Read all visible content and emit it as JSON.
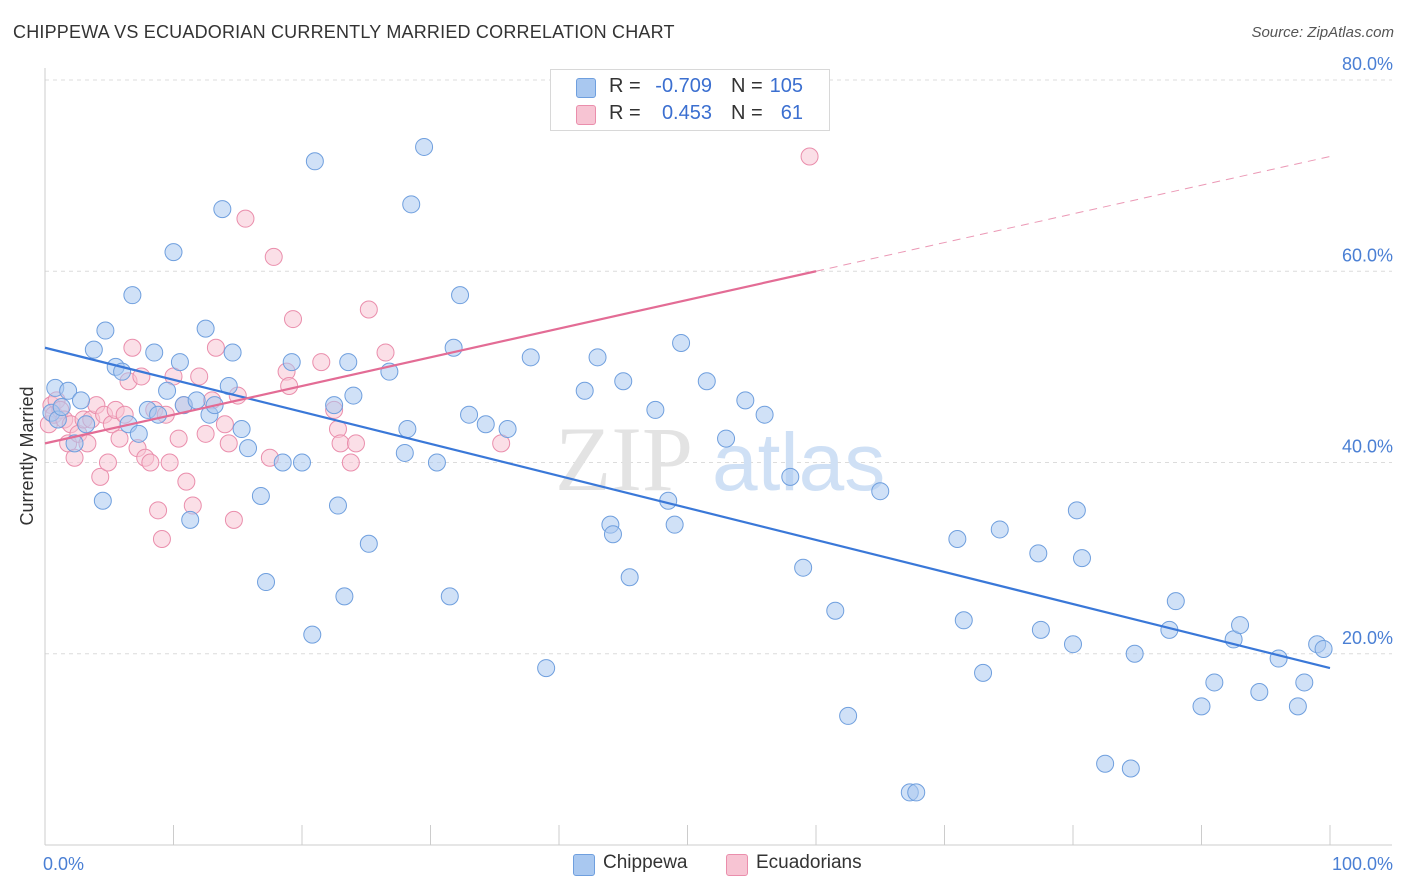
{
  "header": {
    "title": "CHIPPEWA VS ECUADORIAN CURRENTLY MARRIED CORRELATION CHART",
    "source": "Source: ZipAtlas.com"
  },
  "watermark": {
    "zip": "ZIP",
    "atlas": "atlas"
  },
  "legend": {
    "rows": [
      {
        "r_label": "R =",
        "r_value": "-0.709",
        "n_label": "N =",
        "n_value": "105",
        "color": "#a9c8f0"
      },
      {
        "r_label": "R =",
        "r_value": "0.453",
        "n_label": "N =",
        "n_value": "61",
        "color": "#f5b8cb"
      }
    ]
  },
  "bottom_legend": [
    {
      "label": "Chippewa",
      "color": "#a9c8f0"
    },
    {
      "label": "Ecuadorians",
      "color": "#f5b8cb"
    }
  ],
  "colors": {
    "blue_fill": "#a9c8f0",
    "blue_stroke": "#6f9fde",
    "blue_line": "#3a78d8",
    "pink_fill": "#f7c4d3",
    "pink_stroke": "#ea8eac",
    "pink_line": "#e36c95",
    "grid": "#dcdcdc",
    "axis_text": "#4a7fd4"
  },
  "chart_data": {
    "type": "scatter",
    "title": "CHIPPEWA VS ECUADORIAN CURRENTLY MARRIED CORRELATION CHART",
    "xlabel": "",
    "ylabel": "Currently Married",
    "xlim": [
      0,
      100
    ],
    "ylim": [
      0,
      80
    ],
    "x_tick_labels": [
      "0.0%",
      "100.0%"
    ],
    "y_ticks": [
      20,
      40,
      60,
      80
    ],
    "y_tick_labels": [
      "20.0%",
      "40.0%",
      "60.0%",
      "80.0%"
    ],
    "grid": true,
    "legend_position": "top-center",
    "series": [
      {
        "name": "Chippewa",
        "stats": {
          "R": -0.709,
          "N": 105
        },
        "trend": {
          "x": [
            0,
            100
          ],
          "y": [
            52.0,
            18.5
          ]
        },
        "points": [
          [
            0.5,
            45.2
          ],
          [
            0.8,
            47.8
          ],
          [
            1.0,
            44.5
          ],
          [
            1.3,
            45.8
          ],
          [
            1.8,
            47.5
          ],
          [
            2.3,
            42.0
          ],
          [
            2.8,
            46.5
          ],
          [
            3.2,
            44.0
          ],
          [
            3.8,
            51.8
          ],
          [
            4.5,
            36.0
          ],
          [
            4.7,
            53.8
          ],
          [
            5.5,
            50.0
          ],
          [
            6.0,
            49.5
          ],
          [
            6.5,
            44.0
          ],
          [
            6.8,
            57.5
          ],
          [
            7.3,
            43.0
          ],
          [
            8.0,
            45.5
          ],
          [
            8.5,
            51.5
          ],
          [
            8.8,
            45.0
          ],
          [
            9.5,
            47.5
          ],
          [
            10.0,
            62.0
          ],
          [
            10.5,
            50.5
          ],
          [
            10.8,
            46.0
          ],
          [
            11.3,
            34.0
          ],
          [
            11.8,
            46.5
          ],
          [
            12.5,
            54.0
          ],
          [
            12.8,
            45.0
          ],
          [
            13.2,
            46.0
          ],
          [
            13.8,
            66.5
          ],
          [
            14.3,
            48.0
          ],
          [
            14.6,
            51.5
          ],
          [
            15.3,
            43.5
          ],
          [
            15.8,
            41.5
          ],
          [
            16.8,
            36.5
          ],
          [
            17.2,
            27.5
          ],
          [
            18.5,
            40.0
          ],
          [
            19.2,
            50.5
          ],
          [
            20.0,
            40.0
          ],
          [
            20.8,
            22.0
          ],
          [
            21.0,
            71.5
          ],
          [
            22.5,
            46.0
          ],
          [
            22.8,
            35.5
          ],
          [
            23.3,
            26.0
          ],
          [
            23.6,
            50.5
          ],
          [
            24.0,
            47.0
          ],
          [
            25.2,
            31.5
          ],
          [
            26.8,
            49.5
          ],
          [
            28.0,
            41.0
          ],
          [
            28.2,
            43.5
          ],
          [
            28.5,
            67.0
          ],
          [
            29.5,
            73.0
          ],
          [
            30.5,
            40.0
          ],
          [
            31.5,
            26.0
          ],
          [
            31.8,
            52.0
          ],
          [
            32.3,
            57.5
          ],
          [
            33.0,
            45.0
          ],
          [
            34.3,
            44.0
          ],
          [
            36.0,
            43.5
          ],
          [
            37.8,
            51.0
          ],
          [
            39.0,
            18.5
          ],
          [
            42.0,
            47.5
          ],
          [
            43.0,
            51.0
          ],
          [
            44.0,
            33.5
          ],
          [
            44.2,
            32.5
          ],
          [
            45.0,
            48.5
          ],
          [
            45.5,
            28.0
          ],
          [
            47.5,
            45.5
          ],
          [
            48.5,
            36.0
          ],
          [
            49.0,
            33.5
          ],
          [
            49.5,
            52.5
          ],
          [
            51.5,
            48.5
          ],
          [
            53.0,
            42.5
          ],
          [
            54.5,
            46.5
          ],
          [
            56.0,
            45.0
          ],
          [
            58.0,
            38.5
          ],
          [
            59.0,
            29.0
          ],
          [
            61.5,
            24.5
          ],
          [
            62.5,
            13.5
          ],
          [
            65.0,
            37.0
          ],
          [
            67.3,
            5.5
          ],
          [
            67.8,
            5.5
          ],
          [
            71.0,
            32.0
          ],
          [
            71.5,
            23.5
          ],
          [
            73.0,
            18.0
          ],
          [
            74.3,
            33.0
          ],
          [
            77.3,
            30.5
          ],
          [
            77.5,
            22.5
          ],
          [
            80.0,
            21.0
          ],
          [
            80.3,
            35.0
          ],
          [
            80.7,
            30.0
          ],
          [
            82.5,
            8.5
          ],
          [
            84.5,
            8.0
          ],
          [
            84.8,
            20.0
          ],
          [
            87.5,
            22.5
          ],
          [
            88.0,
            25.5
          ],
          [
            90.0,
            14.5
          ],
          [
            91.0,
            17.0
          ],
          [
            92.5,
            21.5
          ],
          [
            93.0,
            23.0
          ],
          [
            94.5,
            16.0
          ],
          [
            96.0,
            19.5
          ],
          [
            97.5,
            14.5
          ],
          [
            98.0,
            17.0
          ],
          [
            99.0,
            21.0
          ],
          [
            99.5,
            20.5
          ]
        ]
      },
      {
        "name": "Ecuadorians",
        "stats": {
          "R": 0.453,
          "N": 61
        },
        "trend": {
          "x": [
            0,
            60
          ],
          "y": [
            42.0,
            60.0
          ]
        },
        "trend_extension": {
          "x": [
            60,
            100
          ],
          "y": [
            60.0,
            72.0
          ]
        },
        "points": [
          [
            0.3,
            44.0
          ],
          [
            0.5,
            46.0
          ],
          [
            0.7,
            45.0
          ],
          [
            0.9,
            46.5
          ],
          [
            1.2,
            45.5
          ],
          [
            1.5,
            44.5
          ],
          [
            1.8,
            42.0
          ],
          [
            2.0,
            44.0
          ],
          [
            2.3,
            40.5
          ],
          [
            2.6,
            43.0
          ],
          [
            3.0,
            44.5
          ],
          [
            3.3,
            42.0
          ],
          [
            3.6,
            44.5
          ],
          [
            4.0,
            46.0
          ],
          [
            4.3,
            38.5
          ],
          [
            4.6,
            45.0
          ],
          [
            4.9,
            40.0
          ],
          [
            5.2,
            44.0
          ],
          [
            5.5,
            45.5
          ],
          [
            5.8,
            42.5
          ],
          [
            6.2,
            45.0
          ],
          [
            6.5,
            48.5
          ],
          [
            6.8,
            52.0
          ],
          [
            7.2,
            41.5
          ],
          [
            7.5,
            49.0
          ],
          [
            7.8,
            40.5
          ],
          [
            8.2,
            40.0
          ],
          [
            8.5,
            45.5
          ],
          [
            8.8,
            35.0
          ],
          [
            9.1,
            32.0
          ],
          [
            9.4,
            45.0
          ],
          [
            9.7,
            40.0
          ],
          [
            10.0,
            49.0
          ],
          [
            10.4,
            42.5
          ],
          [
            10.8,
            46.0
          ],
          [
            11.0,
            38.0
          ],
          [
            11.5,
            35.5
          ],
          [
            12.0,
            49.0
          ],
          [
            12.5,
            43.0
          ],
          [
            13.0,
            46.5
          ],
          [
            13.3,
            52.0
          ],
          [
            14.0,
            44.0
          ],
          [
            14.3,
            42.0
          ],
          [
            14.7,
            34.0
          ],
          [
            15.0,
            47.0
          ],
          [
            15.6,
            65.5
          ],
          [
            17.5,
            40.5
          ],
          [
            17.8,
            61.5
          ],
          [
            18.8,
            49.5
          ],
          [
            19.0,
            48.0
          ],
          [
            19.3,
            55.0
          ],
          [
            21.5,
            50.5
          ],
          [
            22.5,
            45.5
          ],
          [
            22.8,
            43.5
          ],
          [
            23.0,
            42.0
          ],
          [
            23.8,
            40.0
          ],
          [
            24.2,
            42.0
          ],
          [
            25.2,
            56.0
          ],
          [
            26.5,
            51.5
          ],
          [
            35.5,
            42.0
          ],
          [
            59.5,
            72.0
          ]
        ]
      }
    ]
  }
}
